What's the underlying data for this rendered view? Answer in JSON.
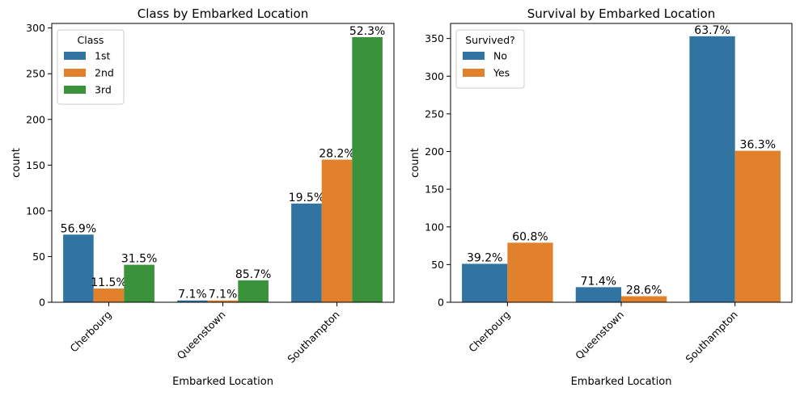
{
  "chart_data": [
    {
      "type": "bar",
      "title": "Class by Embarked Location",
      "xlabel": "Embarked Location",
      "ylabel": "count",
      "categories": [
        "Cherbourg",
        "Queenstown",
        "Southampton"
      ],
      "ylim": [
        0,
        305
      ],
      "yticks": [
        0,
        50,
        100,
        150,
        200,
        250,
        300
      ],
      "legend": {
        "title": "Class",
        "position": "top-left"
      },
      "series": [
        {
          "name": "1st",
          "color": "#3274a1",
          "values": [
            74,
            2,
            108
          ],
          "labels": [
            "56.9%",
            "7.1%",
            "19.5%"
          ]
        },
        {
          "name": "2nd",
          "color": "#e1812c",
          "values": [
            15,
            2,
            156
          ],
          "labels": [
            "11.5%",
            "7.1%",
            "28.2%"
          ]
        },
        {
          "name": "3rd",
          "color": "#3a923a",
          "values": [
            41,
            24,
            290
          ],
          "labels": [
            "31.5%",
            "85.7%",
            "52.3%"
          ]
        }
      ]
    },
    {
      "type": "bar",
      "title": "Survival by Embarked Location",
      "xlabel": "Embarked Location",
      "ylabel": "count",
      "categories": [
        "Cherbourg",
        "Queenstown",
        "Southampton"
      ],
      "ylim": [
        0,
        370
      ],
      "yticks": [
        0,
        50,
        100,
        150,
        200,
        250,
        300,
        350
      ],
      "legend": {
        "title": "Survived?",
        "position": "top-left"
      },
      "series": [
        {
          "name": "No",
          "color": "#3274a1",
          "values": [
            51,
            20,
            353
          ],
          "labels": [
            "39.2%",
            "71.4%",
            "63.7%"
          ]
        },
        {
          "name": "Yes",
          "color": "#e1812c",
          "values": [
            79,
            8,
            201
          ],
          "labels": [
            "60.8%",
            "28.6%",
            "36.3%"
          ]
        }
      ]
    }
  ]
}
